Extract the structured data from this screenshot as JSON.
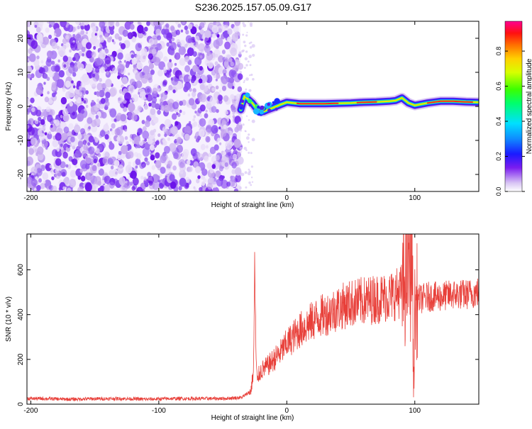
{
  "title": "S236.2025.157.05.09.G17",
  "chart_data": [
    {
      "type": "heatmap",
      "xlabel": "Height of straight line (km)",
      "ylabel": "Frequency (Hz)",
      "xlim": [
        -203,
        150
      ],
      "ylim": [
        -25,
        25
      ],
      "xticks": [
        -200,
        -100,
        0,
        100
      ],
      "yticks": [
        -20,
        -10,
        0,
        10,
        20
      ],
      "noise_region_x": [
        -203,
        -36
      ],
      "ridge": {
        "x": [
          -36,
          -33,
          -30,
          -27,
          -24,
          -21,
          -18,
          -15,
          -10,
          -5,
          0,
          5,
          10,
          20,
          30,
          40,
          50,
          60,
          70,
          80,
          85,
          90,
          95,
          100,
          110,
          120,
          130,
          140,
          150
        ],
        "y": [
          -1.0,
          3.0,
          2.0,
          1.0,
          -0.5,
          -1.5,
          -1.5,
          -1.0,
          -0.3,
          0.5,
          1.2,
          1.0,
          0.8,
          0.8,
          0.8,
          0.9,
          1.0,
          1.2,
          1.3,
          1.5,
          1.7,
          2.5,
          1.0,
          0.3,
          1.0,
          1.5,
          1.5,
          1.3,
          1.2
        ]
      },
      "colorbar": {
        "label": "Normalized spectral amplitude",
        "range": [
          0.0,
          0.97
        ],
        "ticks": [
          0.0,
          0.2,
          0.4,
          0.6,
          0.8
        ]
      },
      "grid": false
    },
    {
      "type": "line",
      "xlabel": "Height of straight line (km)",
      "ylabel": "SNR (10 * v/v)",
      "xlim": [
        -203,
        150
      ],
      "ylim": [
        0,
        760
      ],
      "xticks": [
        -200,
        -100,
        0,
        100
      ],
      "yticks": [
        0,
        200,
        400,
        600
      ],
      "color": "#e8403a",
      "grid": false,
      "series": [
        {
          "x": [
            -203,
            -190,
            -170,
            -150,
            -130,
            -110,
            -90,
            -70,
            -50,
            -35,
            -28,
            -26,
            -25,
            -24,
            -23,
            -22,
            -20,
            -15,
            -10,
            -5,
            0,
            5,
            10,
            15,
            20,
            25,
            30,
            40,
            50,
            60,
            70,
            80,
            85,
            90,
            93,
            95,
            97,
            98,
            99,
            100,
            102,
            105,
            110,
            120,
            130,
            140,
            150
          ],
          "y": [
            25,
            25,
            22,
            24,
            25,
            22,
            25,
            25,
            25,
            30,
            60,
            150,
            630,
            200,
            90,
            130,
            150,
            170,
            200,
            230,
            270,
            300,
            330,
            350,
            370,
            390,
            400,
            430,
            450,
            460,
            470,
            480,
            490,
            510,
            560,
            650,
            600,
            760,
            50,
            400,
            470,
            470,
            480,
            480,
            490,
            490,
            500
          ]
        }
      ]
    }
  ]
}
